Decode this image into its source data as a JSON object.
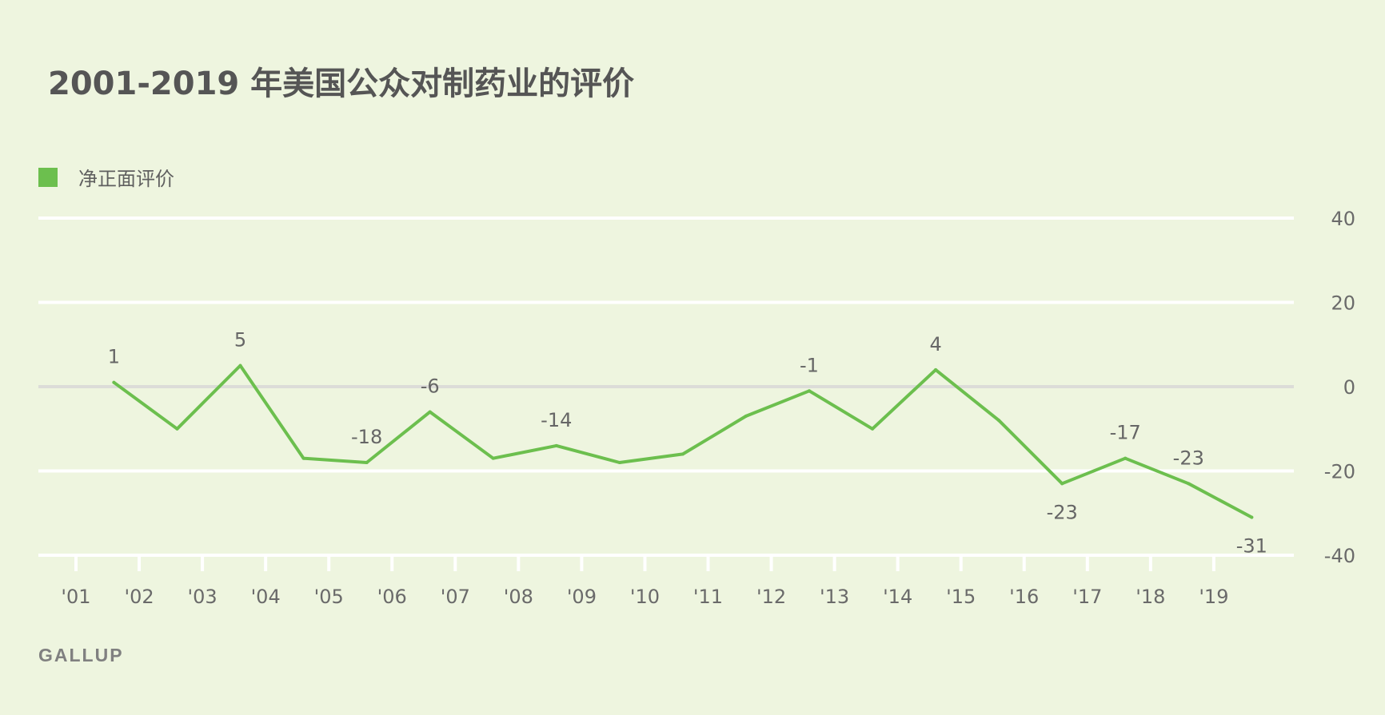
{
  "title": "2001-2019 年美国公众对制药业的评价",
  "legend": {
    "label": "净正面评价",
    "color": "#6cbf4e"
  },
  "source": "GALLUP",
  "chart_data": {
    "type": "line",
    "title": "2001-2019 年美国公众对制药业的评价",
    "xlabel": "",
    "ylabel": "",
    "ylim": [
      -40,
      40
    ],
    "yticks": [
      40,
      20,
      0,
      -20,
      -40
    ],
    "xtick_labels": [
      "'01",
      "'02",
      "'03",
      "'04",
      "'05",
      "'06",
      "'07",
      "'08",
      "'09",
      "'10",
      "'11",
      "'12",
      "'13",
      "'14",
      "'15",
      "'16",
      "'17",
      "'18",
      "'19"
    ],
    "grid": true,
    "legend_position": "top-left",
    "series": [
      {
        "name": "净正面评价",
        "color": "#6cbf4e",
        "x": [
          2001.6,
          2002.6,
          2003.6,
          2004.6,
          2005.6,
          2006.6,
          2007.6,
          2008.6,
          2009.6,
          2010.6,
          2011.6,
          2012.6,
          2013.6,
          2014.6,
          2015.6,
          2016.6,
          2017.6,
          2018.6,
          2019.6
        ],
        "values": [
          1,
          -10,
          5,
          -17,
          -18,
          -6,
          -17,
          -14,
          -18,
          -16,
          -7,
          -1,
          -10,
          4,
          -8,
          -23,
          -17,
          -23,
          -31
        ],
        "labeled": [
          {
            "value": 1,
            "label": "1"
          },
          null,
          {
            "value": 5,
            "label": "5"
          },
          null,
          {
            "value": -18,
            "label": "-18"
          },
          {
            "value": -6,
            "label": "-6"
          },
          null,
          {
            "value": -14,
            "label": "-14"
          },
          null,
          null,
          null,
          {
            "value": -1,
            "label": "-1"
          },
          null,
          {
            "value": 4,
            "label": "4"
          },
          null,
          {
            "value": -23,
            "label": "-23"
          },
          {
            "value": -17,
            "label": "-17"
          },
          {
            "value": -23,
            "label": "-23"
          },
          {
            "value": -31,
            "label": "-31"
          }
        ]
      }
    ]
  }
}
